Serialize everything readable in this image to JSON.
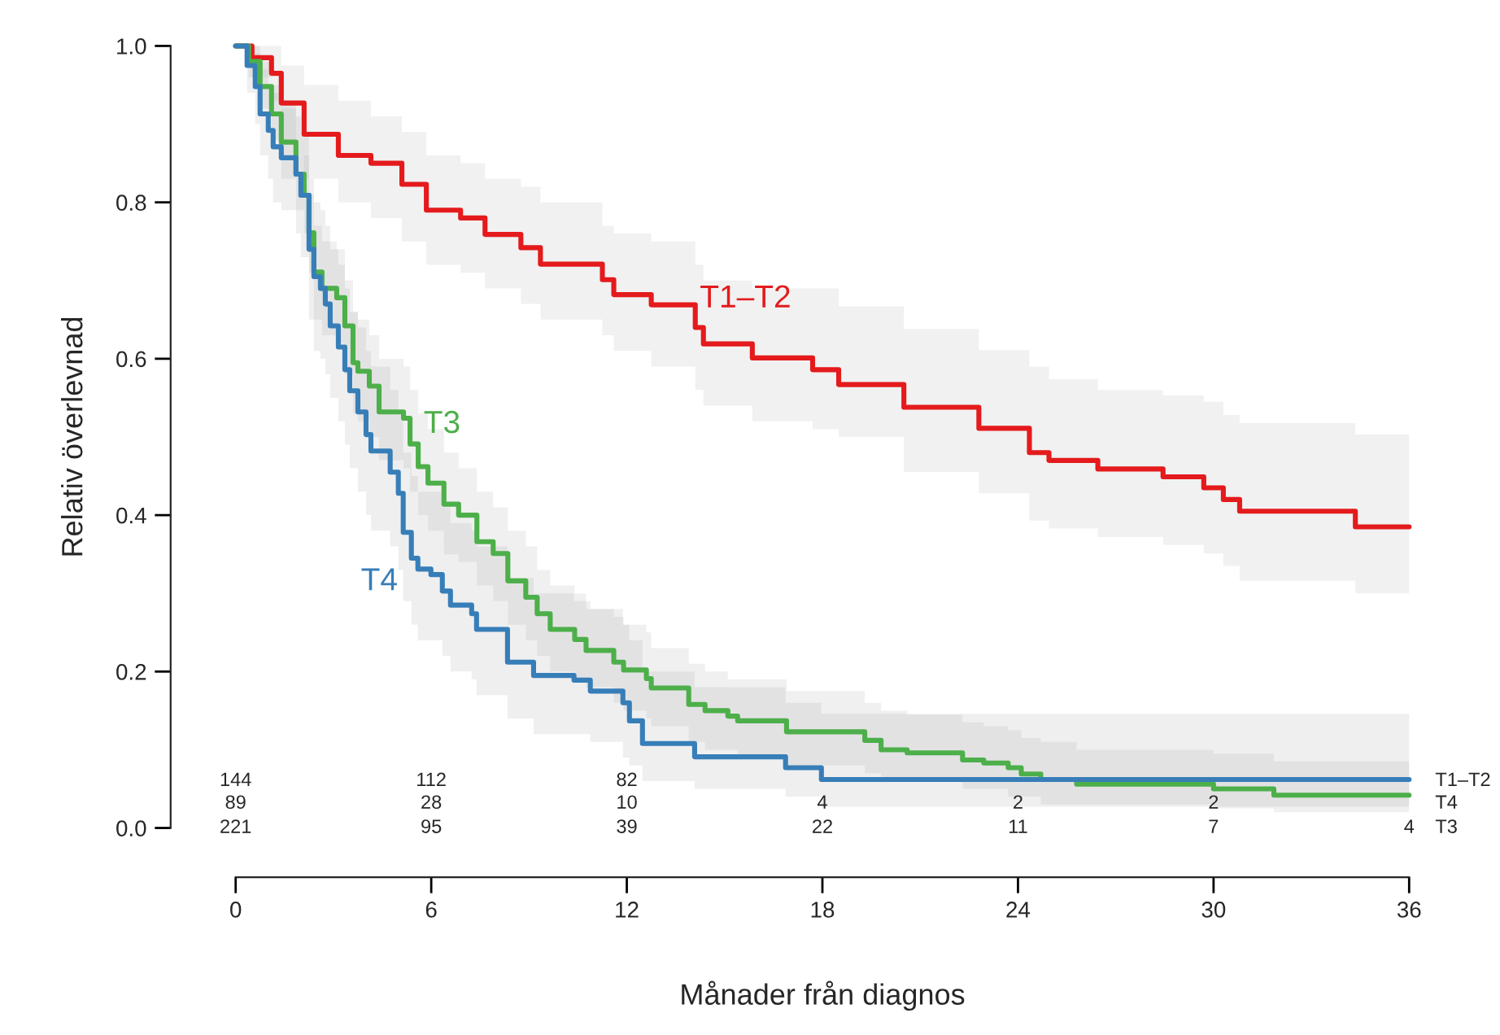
{
  "chart_data": {
    "type": "step",
    "xlabel": "Månader från diagnos",
    "ylabel": "Relativ överlevnad",
    "xlim": [
      0,
      36
    ],
    "ylim": [
      0,
      1
    ],
    "xticks": [
      0,
      6,
      12,
      18,
      24,
      30,
      36
    ],
    "yticks": [
      {
        "value": 0,
        "label": "0.0"
      },
      {
        "value": 0.2,
        "label": "0.2"
      },
      {
        "value": 0.4,
        "label": "0.4"
      },
      {
        "value": 0.6,
        "label": "0.6"
      },
      {
        "value": 0.8,
        "label": "0.8"
      },
      {
        "value": 1,
        "label": "1.0"
      }
    ],
    "grid": false,
    "legend": false,
    "series": [
      {
        "name": "T1–T2",
        "color": "#e41a1c",
        "x": [
          0,
          0.5,
          1.1,
          1.4,
          2.1,
          3.15,
          4.15,
          5.1,
          5.85,
          6.9,
          7.65,
          8.75,
          9.35,
          11.25,
          11.6,
          12.75,
          14.1,
          14.35,
          15.85,
          17.7,
          18.5,
          20.5,
          22.8,
          24.35,
          24.95,
          26.45,
          28.45,
          29.7,
          30.3,
          30.8,
          34.35,
          36
        ],
        "values": [
          1.0,
          0.985,
          0.965,
          0.927,
          0.887,
          0.86,
          0.85,
          0.823,
          0.79,
          0.78,
          0.759,
          0.742,
          0.721,
          0.701,
          0.682,
          0.669,
          0.64,
          0.619,
          0.601,
          0.586,
          0.567,
          0.538,
          0.511,
          0.48,
          0.47,
          0.459,
          0.449,
          0.435,
          0.42,
          0.405,
          0.385,
          0.385
        ],
        "lower": [
          1.0,
          0.96,
          0.93,
          0.88,
          0.83,
          0.8,
          0.78,
          0.75,
          0.72,
          0.71,
          0.69,
          0.67,
          0.65,
          0.63,
          0.61,
          0.59,
          0.56,
          0.54,
          0.52,
          0.51,
          0.5,
          0.455,
          0.428,
          0.393,
          0.383,
          0.372,
          0.362,
          0.351,
          0.335,
          0.316,
          0.3,
          0.3
        ],
        "upper": [
          1.0,
          1.0,
          1.0,
          0.975,
          0.95,
          0.93,
          0.91,
          0.89,
          0.86,
          0.85,
          0.83,
          0.82,
          0.8,
          0.77,
          0.76,
          0.75,
          0.72,
          0.7,
          0.69,
          0.69,
          0.667,
          0.638,
          0.611,
          0.59,
          0.574,
          0.56,
          0.553,
          0.545,
          0.528,
          0.518,
          0.503,
          0.503
        ]
      },
      {
        "name": "T3",
        "color": "#4daf4a",
        "x": [
          0,
          0.4,
          0.75,
          1.1,
          1.4,
          1.85,
          2.1,
          2.25,
          2.4,
          2.65,
          3.1,
          3.35,
          3.6,
          3.75,
          4.1,
          4.4,
          5.15,
          5.35,
          5.6,
          5.9,
          6.39,
          6.84,
          7.4,
          7.9,
          8.35,
          8.9,
          9.25,
          9.65,
          10.4,
          10.75,
          11.6,
          11.9,
          12.6,
          12.75,
          13.9,
          14.4,
          15.1,
          15.4,
          16.9,
          19.3,
          19.8,
          20.6,
          22.3,
          22.95,
          23.7,
          24.1,
          24.7,
          25.8,
          30.0,
          31.85,
          36
        ],
        "values": [
          1.0,
          0.98,
          0.948,
          0.913,
          0.877,
          0.836,
          0.809,
          0.761,
          0.711,
          0.69,
          0.678,
          0.642,
          0.595,
          0.584,
          0.565,
          0.532,
          0.524,
          0.491,
          0.462,
          0.441,
          0.414,
          0.4,
          0.366,
          0.351,
          0.316,
          0.295,
          0.274,
          0.254,
          0.241,
          0.227,
          0.212,
          0.202,
          0.191,
          0.179,
          0.158,
          0.15,
          0.143,
          0.137,
          0.123,
          0.112,
          0.1,
          0.096,
          0.087,
          0.083,
          0.077,
          0.069,
          0.062,
          0.056,
          0.05,
          0.042,
          0.042
        ],
        "lower": [
          1.0,
          0.96,
          0.92,
          0.88,
          0.83,
          0.79,
          0.76,
          0.71,
          0.65,
          0.63,
          0.62,
          0.58,
          0.53,
          0.52,
          0.5,
          0.47,
          0.46,
          0.43,
          0.4,
          0.38,
          0.35,
          0.34,
          0.31,
          0.29,
          0.26,
          0.24,
          0.22,
          0.2,
          0.19,
          0.18,
          0.16,
          0.15,
          0.14,
          0.13,
          0.11,
          0.1,
          0.1,
          0.09,
          0.08,
          0.07,
          0.06,
          0.06,
          0.05,
          0.05,
          0.04,
          0.04,
          0.03,
          0.03,
          0.025,
          0.02,
          0.02
        ],
        "upper": [
          1.0,
          1.0,
          0.98,
          0.95,
          0.92,
          0.88,
          0.86,
          0.81,
          0.77,
          0.75,
          0.74,
          0.7,
          0.66,
          0.65,
          0.63,
          0.6,
          0.59,
          0.56,
          0.53,
          0.51,
          0.48,
          0.46,
          0.43,
          0.41,
          0.38,
          0.36,
          0.33,
          0.31,
          0.3,
          0.28,
          0.27,
          0.26,
          0.25,
          0.23,
          0.21,
          0.2,
          0.19,
          0.19,
          0.175,
          0.16,
          0.15,
          0.145,
          0.135,
          0.13,
          0.125,
          0.115,
          0.11,
          0.1,
          0.095,
          0.085,
          0.085
        ]
      },
      {
        "name": "T4",
        "color": "#377eb8",
        "x": [
          0,
          0.35,
          0.6,
          0.75,
          1.0,
          1.15,
          1.4,
          1.85,
          2.0,
          2.25,
          2.4,
          2.6,
          2.75,
          2.9,
          3.15,
          3.35,
          3.5,
          3.75,
          4.0,
          4.15,
          4.74,
          4.99,
          5.14,
          5.39,
          5.59,
          5.99,
          6.34,
          6.59,
          7.24,
          7.39,
          8.34,
          9.14,
          10.38,
          10.88,
          11.88,
          12.08,
          12.48,
          14.08,
          16.87,
          17.97,
          36
        ],
        "values": [
          1.0,
          0.975,
          0.948,
          0.913,
          0.892,
          0.871,
          0.857,
          0.836,
          0.809,
          0.74,
          0.705,
          0.69,
          0.67,
          0.642,
          0.615,
          0.586,
          0.559,
          0.532,
          0.503,
          0.482,
          0.455,
          0.428,
          0.378,
          0.345,
          0.331,
          0.324,
          0.303,
          0.285,
          0.274,
          0.254,
          0.212,
          0.195,
          0.189,
          0.175,
          0.16,
          0.137,
          0.108,
          0.091,
          0.077,
          0.062,
          0.062
        ],
        "lower": [
          1.0,
          0.94,
          0.9,
          0.86,
          0.83,
          0.8,
          0.79,
          0.76,
          0.73,
          0.65,
          0.61,
          0.6,
          0.58,
          0.55,
          0.52,
          0.49,
          0.46,
          0.43,
          0.4,
          0.38,
          0.36,
          0.33,
          0.29,
          0.26,
          0.24,
          0.24,
          0.22,
          0.2,
          0.19,
          0.17,
          0.14,
          0.12,
          0.12,
          0.11,
          0.09,
          0.08,
          0.06,
          0.05,
          0.04,
          0.027,
          0.027
        ],
        "upper": [
          1.0,
          1.0,
          0.99,
          0.97,
          0.95,
          0.94,
          0.93,
          0.91,
          0.89,
          0.83,
          0.8,
          0.79,
          0.77,
          0.74,
          0.72,
          0.69,
          0.66,
          0.64,
          0.61,
          0.59,
          0.56,
          0.53,
          0.48,
          0.45,
          0.43,
          0.43,
          0.41,
          0.39,
          0.38,
          0.36,
          0.32,
          0.3,
          0.29,
          0.28,
          0.26,
          0.24,
          0.2,
          0.18,
          0.16,
          0.146,
          0.146
        ]
      }
    ],
    "annotations": [
      "144",
      "112",
      "82",
      "89",
      "28",
      "10",
      "4",
      "2",
      "2",
      "221",
      "95",
      "39",
      "22",
      "11",
      "7",
      "4",
      "T1–T2",
      "T4",
      "T3"
    ]
  }
}
